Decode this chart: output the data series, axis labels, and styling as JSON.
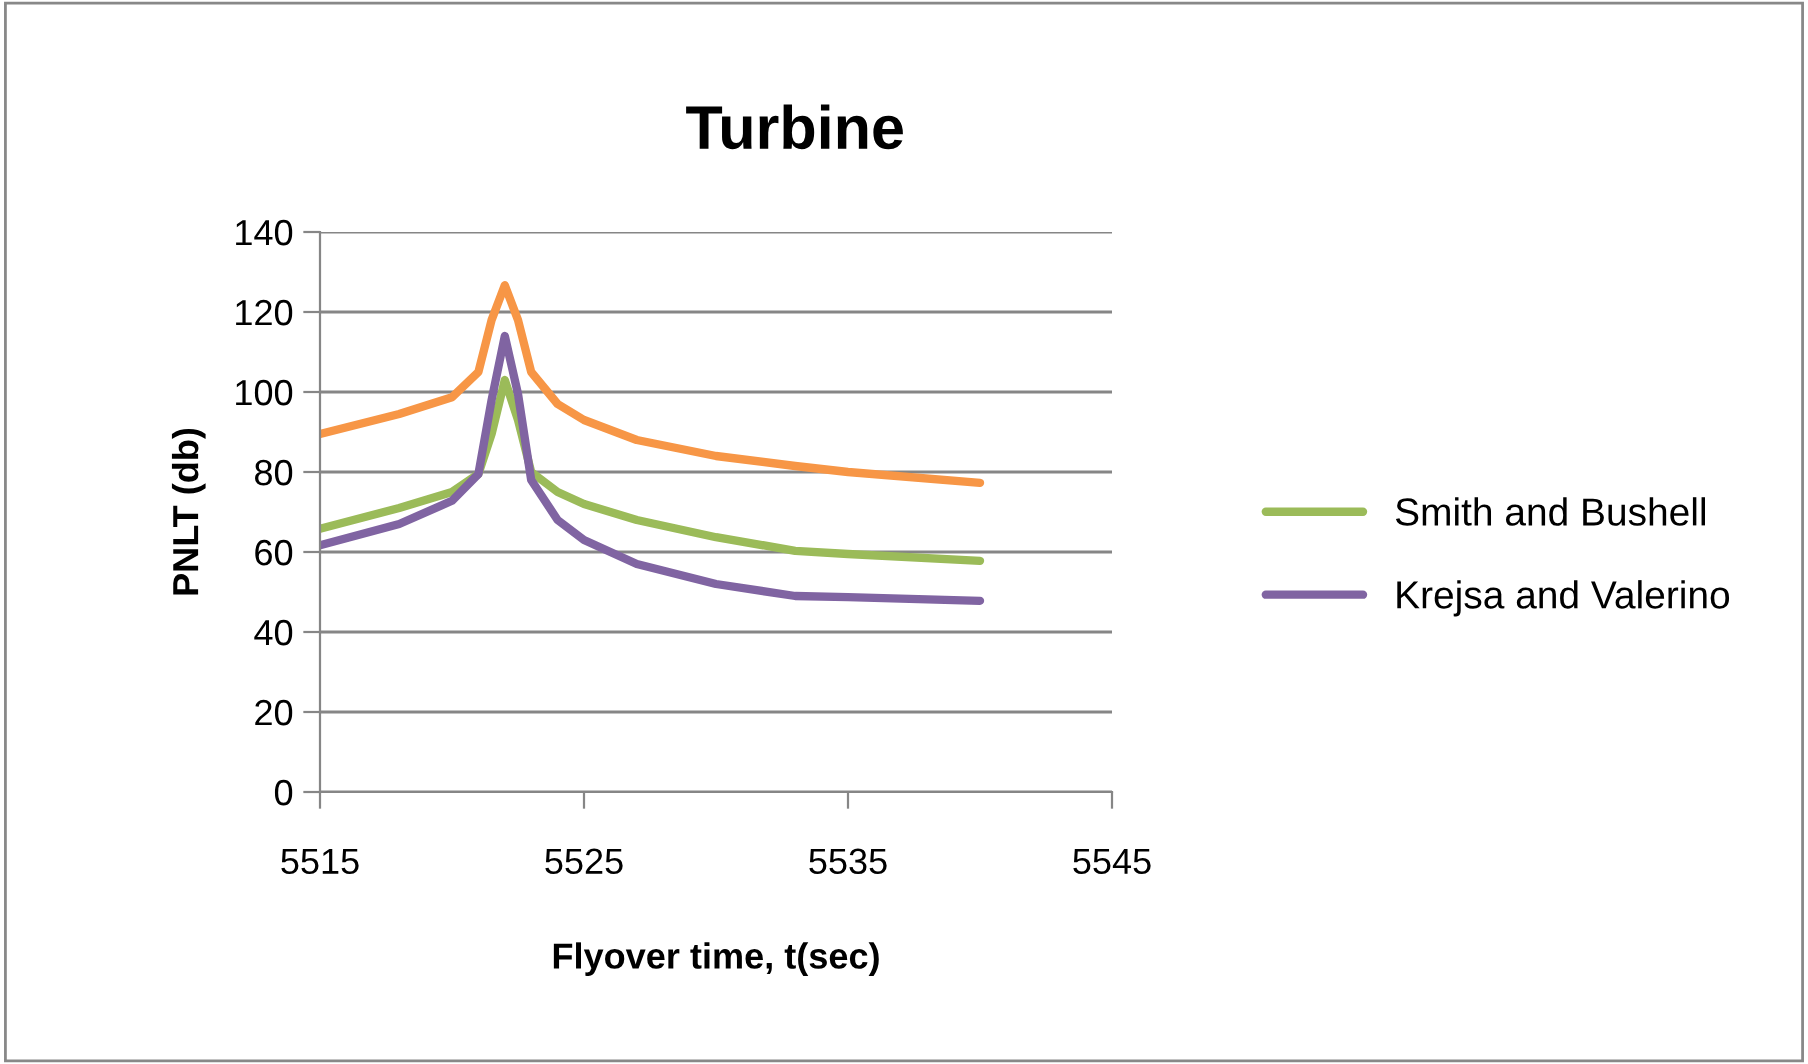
{
  "chart_data": {
    "type": "line",
    "title": "Turbine",
    "xlabel": "Flyover time, t(sec)",
    "ylabel": "PNLT (db)",
    "x": [
      5515,
      5518,
      5520,
      5521,
      5521.5,
      5522,
      5522.5,
      5523,
      5524,
      5525,
      5527,
      5530,
      5533,
      5535,
      5540
    ],
    "series": [
      {
        "name": "Smith and Bushell",
        "color": "#9bbb59",
        "values": [
          65.8,
          71,
          75,
          79.5,
          89.5,
          103,
          93,
          80,
          75,
          72,
          68,
          63.7,
          60.3,
          59.5,
          57.8
        ]
      },
      {
        "color": "#f79646",
        "values": [
          89.5,
          94.5,
          98.7,
          105,
          118,
          126.7,
          118,
          105,
          97,
          93,
          88,
          84,
          81.5,
          80,
          77.3
        ]
      },
      {
        "name": "Krejsa and Valerino",
        "color": "#8064a2",
        "values": [
          61.7,
          67,
          72.8,
          79.5,
          98,
          114,
          99.5,
          78,
          68,
          63,
          57,
          52,
          49,
          48.7,
          47.8
        ]
      }
    ],
    "xlim": [
      5515,
      5545
    ],
    "xticks": [
      5515,
      5525,
      5535,
      5545
    ],
    "ylim": [
      0,
      140
    ],
    "yticks": [
      0,
      20,
      40,
      60,
      80,
      100,
      120,
      140
    ],
    "grid": "y",
    "legend": "right",
    "marker": "none",
    "line_style": "solid"
  }
}
